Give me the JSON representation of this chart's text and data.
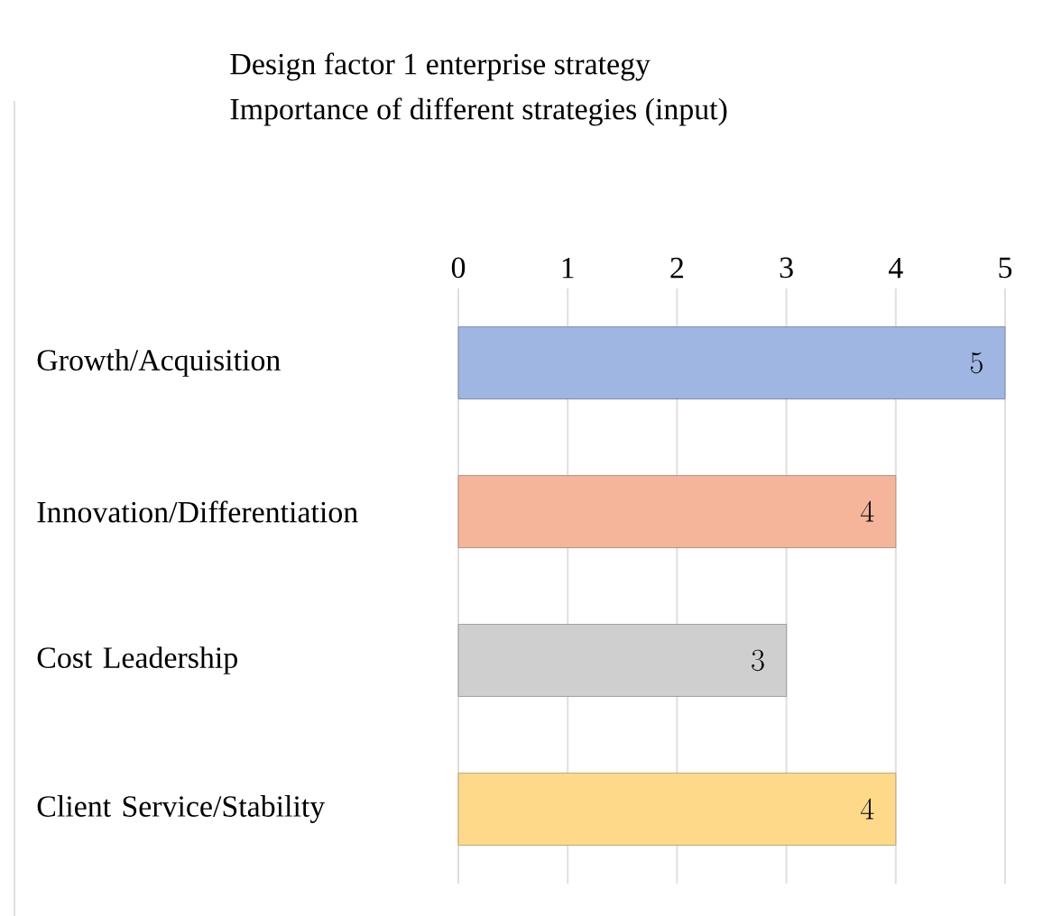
{
  "chart_data": {
    "type": "bar",
    "orientation": "horizontal",
    "title": "Design factor 1 enterprise strategy",
    "subtitle": "Importance of different strategies (input)",
    "categories": [
      "Growth/Acquisition",
      "Innovation/Differentiation",
      "Cost Leadership",
      "Client Service/Stability"
    ],
    "values": [
      5,
      4,
      3,
      4
    ],
    "colors": [
      "#9fb6e3",
      "#f5b59a",
      "#cfcfcf",
      "#ffd98a"
    ],
    "xlim": [
      0,
      5
    ],
    "xticks": [
      0,
      1,
      2,
      3,
      4,
      5
    ],
    "grid": "x",
    "data_labels": true
  }
}
